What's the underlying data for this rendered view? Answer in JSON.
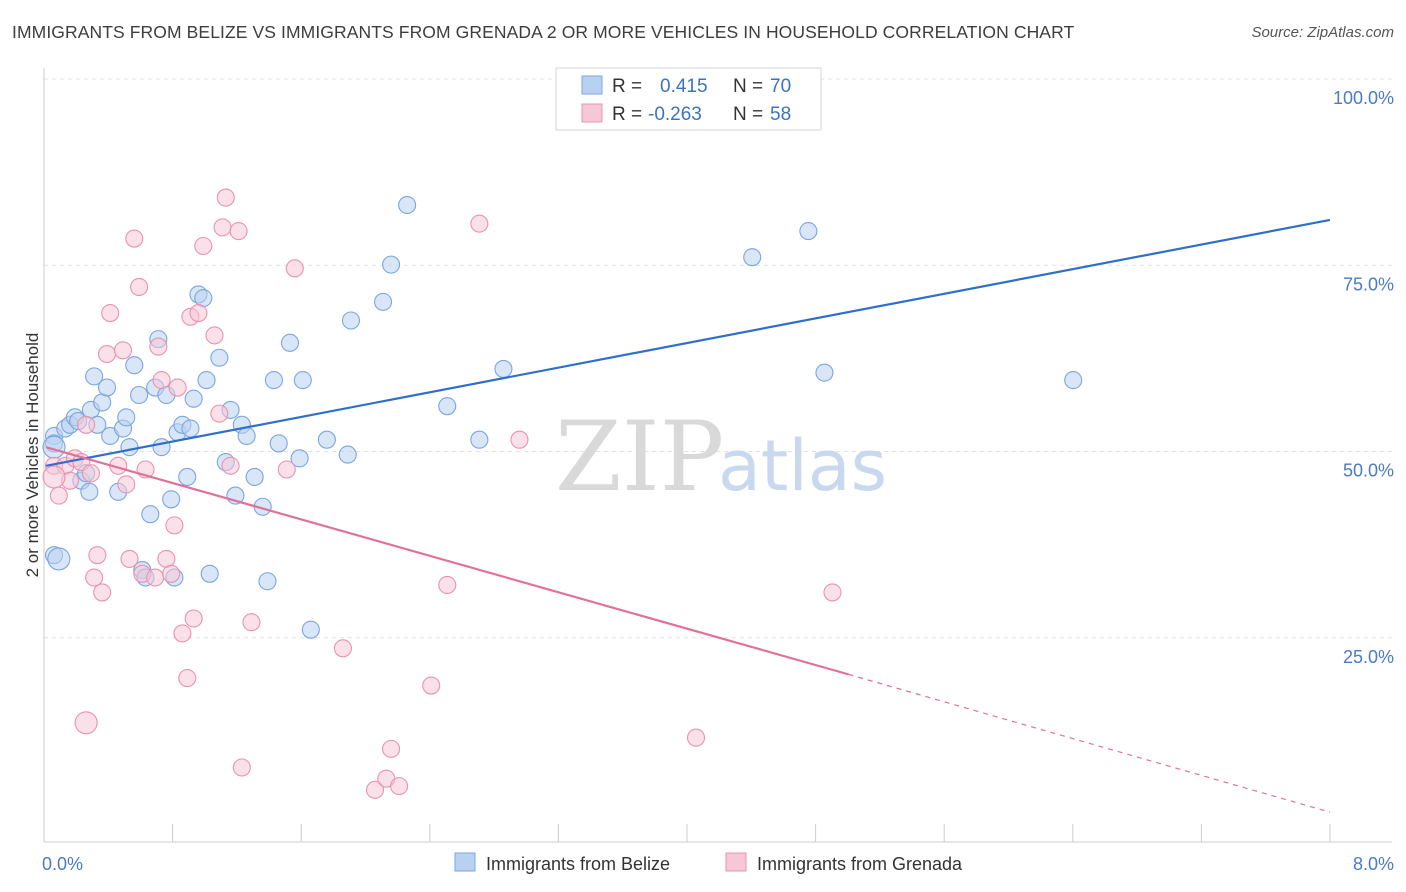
{
  "header": {
    "title": "IMMIGRANTS FROM BELIZE VS IMMIGRANTS FROM GRENADA 2 OR MORE VEHICLES IN HOUSEHOLD CORRELATION CHART",
    "source": "Source: ZipAtlas.com"
  },
  "watermark": {
    "zip": "ZIP",
    "atlas": "atlas"
  },
  "legend": {
    "rows": [
      {
        "r_label": "R =",
        "r_value": "0.415",
        "n_label": "N =",
        "n_value": "70"
      },
      {
        "r_label": "R =",
        "r_value": "-0.263",
        "n_label": "N =",
        "n_value": "58"
      }
    ]
  },
  "chart_data": {
    "type": "scatter",
    "xlabel": "",
    "ylabel": "2 or more Vehicles in Household",
    "xlim": [
      0,
      8
    ],
    "ylim": [
      0,
      100
    ],
    "x_tick_labels": [
      {
        "value": 0,
        "label": "0.0%"
      },
      {
        "value": 8,
        "label": "8.0%"
      }
    ],
    "y_tick_labels": [
      {
        "value": 25,
        "label": "25.0%"
      },
      {
        "value": 50,
        "label": "50.0%"
      },
      {
        "value": 75,
        "label": "75.0%"
      },
      {
        "value": 100,
        "label": "100.0%"
      }
    ],
    "grid": "horizontal-dashed",
    "legend_placement": "bottom-center",
    "series": [
      {
        "name": "Immigrants from Belize",
        "color": "#7aa6e0",
        "fill": "#b9d1f1",
        "line_color": "#2f6fcc",
        "trend": {
          "x": [
            0,
            8
          ],
          "y": [
            50.5,
            83.5
          ]
        },
        "points": [
          [
            0.05,
            54.5
          ],
          [
            0.05,
            53.5
          ],
          [
            0.05,
            38.5
          ],
          [
            0.12,
            55.5
          ],
          [
            0.15,
            56
          ],
          [
            0.18,
            57
          ],
          [
            0.2,
            56.5
          ],
          [
            0.22,
            48.5
          ],
          [
            0.25,
            49.5
          ],
          [
            0.27,
            47
          ],
          [
            0.28,
            58
          ],
          [
            0.3,
            62.5
          ],
          [
            0.32,
            56
          ],
          [
            0.35,
            59
          ],
          [
            0.38,
            61
          ],
          [
            0.4,
            54.5
          ],
          [
            0.45,
            47
          ],
          [
            0.48,
            55.5
          ],
          [
            0.5,
            57
          ],
          [
            0.52,
            53
          ],
          [
            0.55,
            64
          ],
          [
            0.58,
            60
          ],
          [
            0.6,
            36.5
          ],
          [
            0.62,
            35.5
          ],
          [
            0.65,
            44
          ],
          [
            0.68,
            61
          ],
          [
            0.7,
            67.5
          ],
          [
            0.72,
            53
          ],
          [
            0.75,
            60
          ],
          [
            0.78,
            46
          ],
          [
            0.8,
            35.5
          ],
          [
            0.82,
            55
          ],
          [
            0.85,
            56
          ],
          [
            0.88,
            49
          ],
          [
            0.9,
            55.5
          ],
          [
            0.92,
            59.5
          ],
          [
            0.95,
            73.5
          ],
          [
            0.98,
            73
          ],
          [
            1.0,
            62
          ],
          [
            1.02,
            36
          ],
          [
            1.08,
            65
          ],
          [
            1.12,
            51
          ],
          [
            1.15,
            58
          ],
          [
            1.18,
            46.5
          ],
          [
            1.22,
            56
          ],
          [
            1.25,
            54.5
          ],
          [
            1.3,
            49
          ],
          [
            1.35,
            45
          ],
          [
            1.38,
            35
          ],
          [
            1.42,
            62
          ],
          [
            1.45,
            53.5
          ],
          [
            1.52,
            67
          ],
          [
            1.58,
            51.5
          ],
          [
            1.6,
            62
          ],
          [
            1.65,
            28.5
          ],
          [
            1.75,
            54
          ],
          [
            1.88,
            52
          ],
          [
            1.9,
            70
          ],
          [
            2.1,
            72.5
          ],
          [
            2.15,
            77.5
          ],
          [
            2.25,
            85.5
          ],
          [
            2.5,
            58.5
          ],
          [
            2.7,
            54
          ],
          [
            2.85,
            63.5
          ],
          [
            4.4,
            78.5
          ],
          [
            4.75,
            82
          ],
          [
            4.85,
            63
          ],
          [
            6.4,
            62
          ]
        ],
        "large_points": [
          [
            0.08,
            38
          ],
          [
            0.05,
            53
          ]
        ]
      },
      {
        "name": "Immigrants from Grenada",
        "color": "#e893b0",
        "fill": "#f6c7d6",
        "line_color": "#e0719a",
        "trend": {
          "x": [
            0,
            5.0
          ],
          "y": [
            53,
            22.5
          ]
        },
        "trend_dashed": {
          "x": [
            5.0,
            8.0
          ],
          "y": [
            22.5,
            4
          ]
        },
        "points": [
          [
            0.05,
            50.5
          ],
          [
            0.08,
            46.5
          ],
          [
            0.12,
            50.5
          ],
          [
            0.15,
            48.5
          ],
          [
            0.18,
            51.5
          ],
          [
            0.22,
            51
          ],
          [
            0.25,
            56
          ],
          [
            0.28,
            49.5
          ],
          [
            0.3,
            35.5
          ],
          [
            0.32,
            38.5
          ],
          [
            0.35,
            33.5
          ],
          [
            0.38,
            65.5
          ],
          [
            0.4,
            71
          ],
          [
            0.45,
            50.5
          ],
          [
            0.48,
            66
          ],
          [
            0.5,
            48
          ],
          [
            0.52,
            38
          ],
          [
            0.55,
            81
          ],
          [
            0.58,
            74.5
          ],
          [
            0.6,
            36
          ],
          [
            0.62,
            50
          ],
          [
            0.68,
            35.5
          ],
          [
            0.7,
            66.5
          ],
          [
            0.72,
            62
          ],
          [
            0.75,
            38
          ],
          [
            0.78,
            36
          ],
          [
            0.8,
            42.5
          ],
          [
            0.82,
            61
          ],
          [
            0.85,
            28
          ],
          [
            0.88,
            22
          ],
          [
            0.9,
            70.5
          ],
          [
            0.92,
            30
          ],
          [
            0.95,
            71
          ],
          [
            0.98,
            80
          ],
          [
            1.05,
            68
          ],
          [
            1.08,
            57.5
          ],
          [
            1.1,
            82.5
          ],
          [
            1.12,
            86.5
          ],
          [
            1.15,
            50.5
          ],
          [
            1.2,
            82
          ],
          [
            1.22,
            10
          ],
          [
            1.28,
            29.5
          ],
          [
            1.5,
            50
          ],
          [
            1.55,
            77
          ],
          [
            1.85,
            26
          ],
          [
            2.05,
            7
          ],
          [
            2.12,
            8.5
          ],
          [
            2.15,
            12.5
          ],
          [
            2.2,
            7.5
          ],
          [
            2.4,
            21
          ],
          [
            2.5,
            34.5
          ],
          [
            2.7,
            83
          ],
          [
            2.95,
            54
          ],
          [
            4.05,
            14
          ],
          [
            4.9,
            33.5
          ]
        ],
        "large_points": [
          [
            0.25,
            16
          ],
          [
            0.05,
            49
          ]
        ]
      }
    ]
  }
}
